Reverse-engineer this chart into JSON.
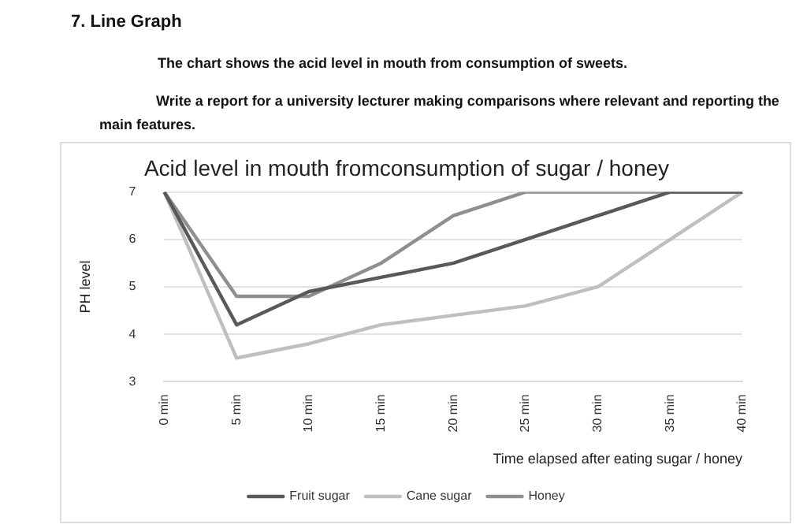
{
  "chart_data": {
    "type": "line",
    "title": "Acid level in mouth fromconsumption of sugar / honey",
    "xlabel": "Time elapsed after eating sugar / honey",
    "ylabel": "PH level",
    "annotations": [
      "7.  Line Graph",
      "The chart shows the acid level in mouth from consumption of sweets.",
      "Write a report for a university lecturer making comparisons where relevant and reporting the main features."
    ],
    "categories": [
      "0 min",
      "5 min",
      "10 min",
      "15 min",
      "20 min",
      "25 min",
      "30 min",
      "35 min",
      "40 min"
    ],
    "series": [
      {
        "name": "Fruit sugar",
        "color": "#595959",
        "values": [
          7,
          4.2,
          4.9,
          5.2,
          5.5,
          6,
          6.5,
          7,
          7
        ]
      },
      {
        "name": "Cane sugar",
        "color": "#bfbfbf",
        "values": [
          7,
          3.5,
          3.8,
          4.2,
          4.4,
          4.6,
          5,
          6,
          7
        ]
      },
      {
        "name": "Honey",
        "color": "#8f8f8f",
        "values": [
          7,
          4.8,
          4.8,
          5.5,
          6.5,
          7,
          7,
          7,
          7
        ]
      }
    ],
    "ylim": [
      3,
      7
    ],
    "yticks": [
      3,
      4,
      5,
      6,
      7
    ],
    "grid": "y",
    "legend": "bottom",
    "marker": "none",
    "line_style": "solid"
  }
}
